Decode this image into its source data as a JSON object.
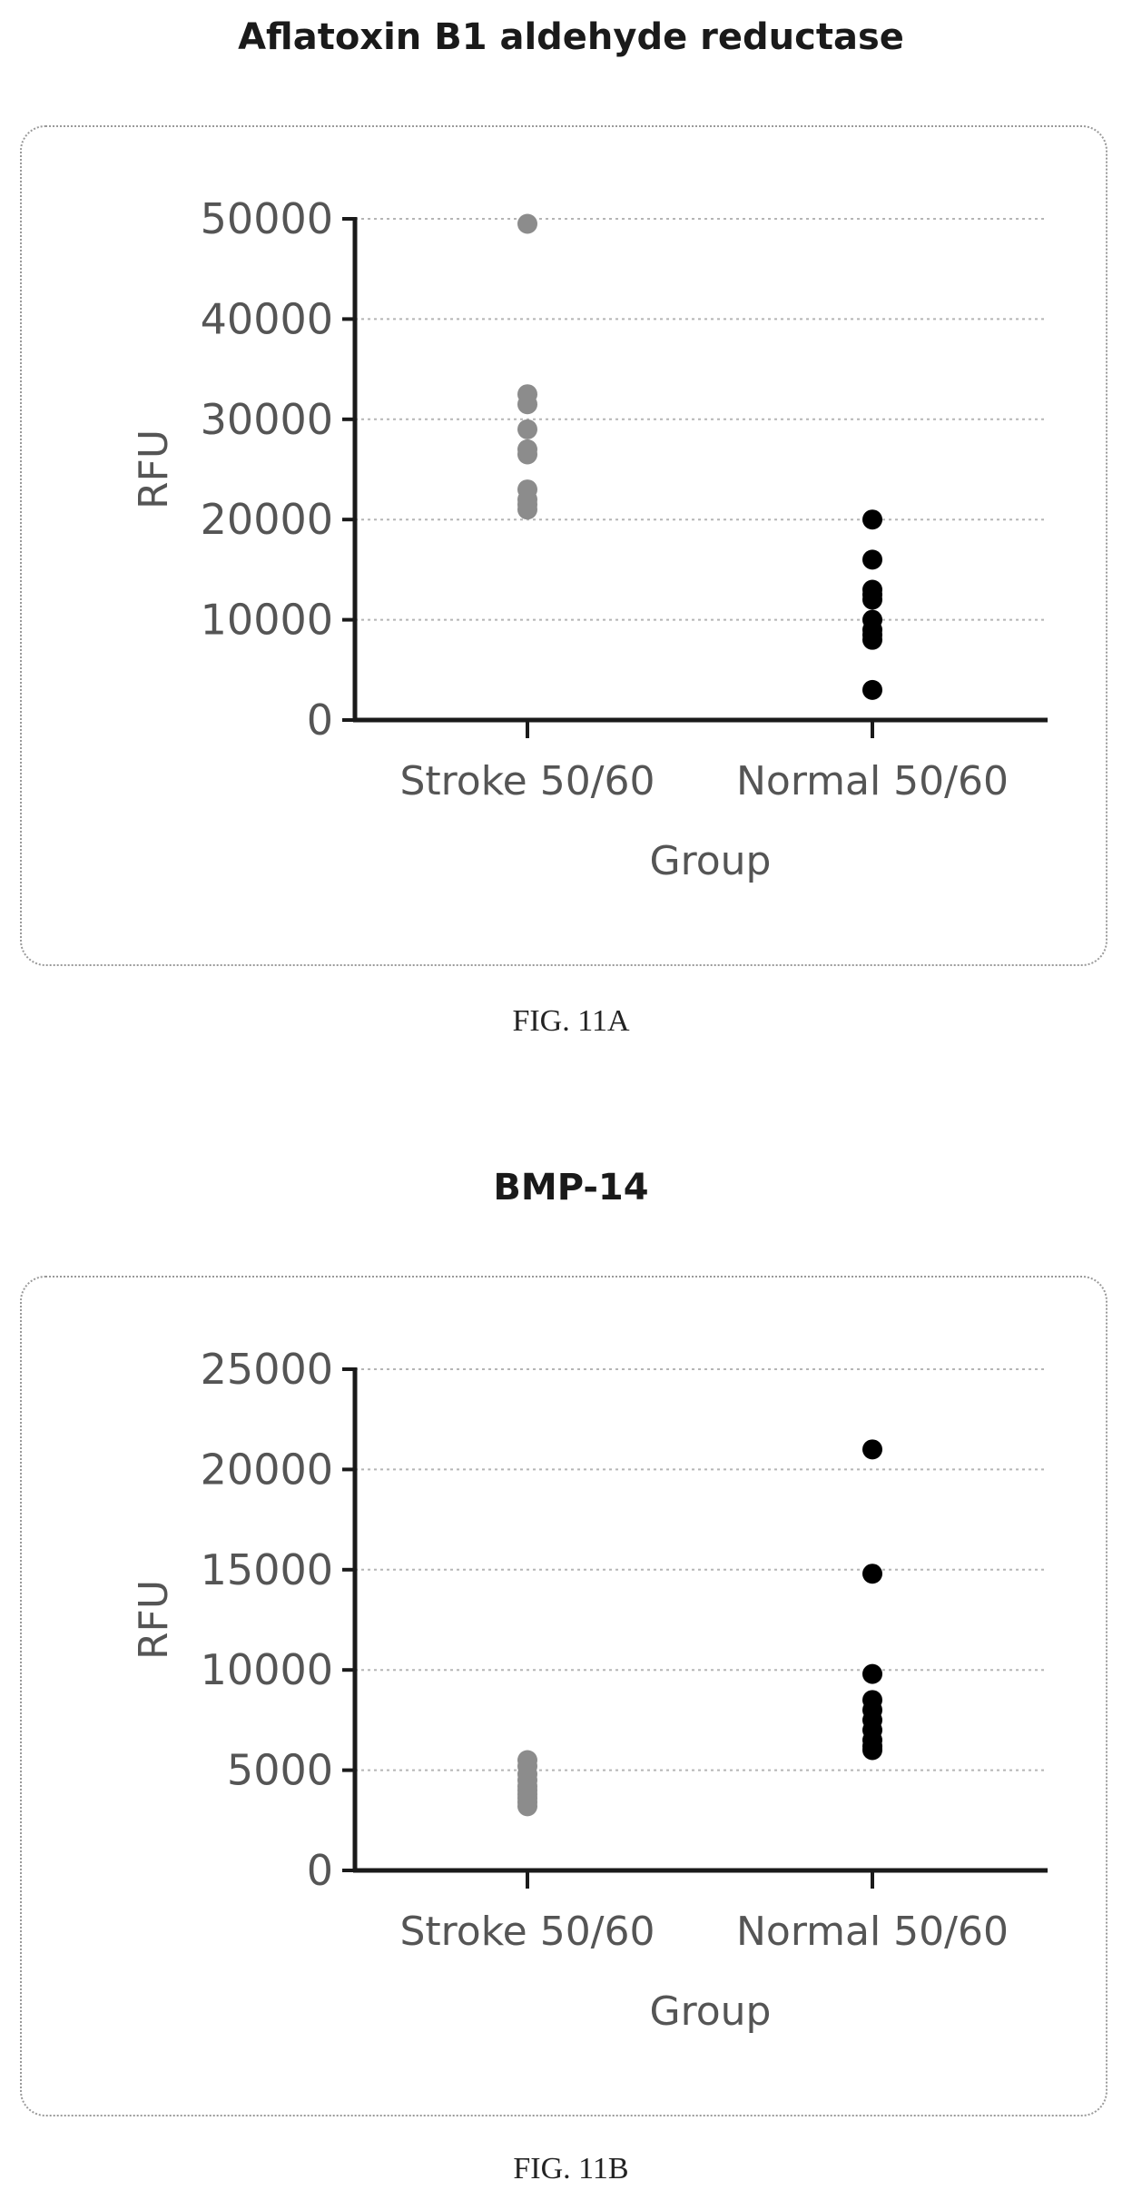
{
  "chart_data": [
    {
      "type": "scatter",
      "title": "Aflatoxin B1 aldehyde reductase",
      "caption": "FIG. 11A",
      "xlabel": "Group",
      "ylabel": "RFU",
      "categories": [
        "Stroke 50/60",
        "Normal 50/60"
      ],
      "yticks": [
        "0",
        "10000",
        "20000",
        "30000",
        "40000",
        "50000"
      ],
      "ylim": [
        0,
        50000
      ],
      "grid": true,
      "series": [
        {
          "category": "Stroke 50/60",
          "color": "#8c8c8c",
          "values": [
            49500,
            32500,
            31500,
            29000,
            27000,
            26500,
            23000,
            22000,
            21500,
            21000
          ]
        },
        {
          "category": "Normal 50/60",
          "color": "#000000",
          "values": [
            20000,
            16000,
            13000,
            12500,
            12000,
            10000,
            9000,
            8500,
            8000,
            3000
          ]
        }
      ]
    },
    {
      "type": "scatter",
      "title": "BMP-14",
      "caption": "FIG. 11B",
      "xlabel": "Group",
      "ylabel": "RFU",
      "categories": [
        "Stroke 50/60",
        "Normal 50/60"
      ],
      "yticks": [
        "0",
        "5000",
        "10000",
        "15000",
        "20000",
        "25000"
      ],
      "ylim": [
        0,
        25000
      ],
      "grid": true,
      "series": [
        {
          "category": "Stroke 50/60",
          "color": "#8c8c8c",
          "values": [
            5500,
            5200,
            4800,
            4500,
            4200,
            4000,
            3800,
            3600,
            3400,
            3200
          ]
        },
        {
          "category": "Normal 50/60",
          "color": "#000000",
          "values": [
            21000,
            14800,
            9800,
            8500,
            8000,
            7500,
            7000,
            6500,
            6200,
            6000
          ]
        }
      ]
    }
  ]
}
